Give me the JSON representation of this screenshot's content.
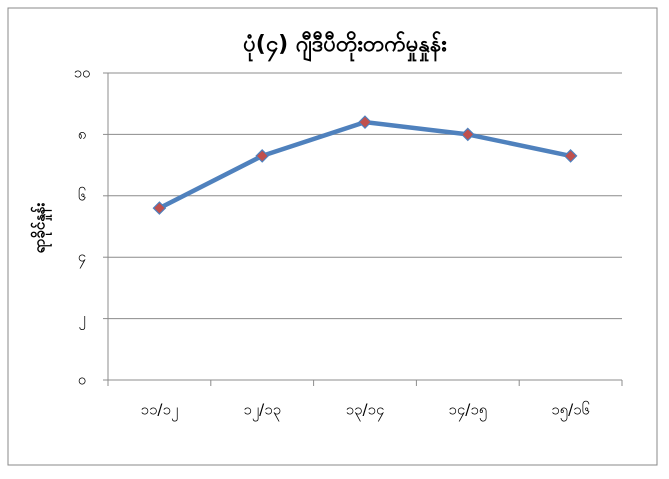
{
  "chart_data": {
    "type": "line",
    "title": "ပုံ(၄) ဂျီဒီပီတိုးတက်မှုနှုန်း",
    "y_label": "ရာခိုင်နှုန်း",
    "categories": [
      "၁၁/၁၂",
      "၁၂/၁၃",
      "၁၃/၁၄",
      "၁၄/၁၅",
      "၁၅/၁၆"
    ],
    "series": [
      {
        "name": "ရာခိုင်နှုန်း",
        "color": "#4f81bd",
        "marker_color": "#c0504d",
        "values": [
          5.6,
          7.3,
          8.4,
          8.0,
          7.3
        ]
      }
    ],
    "ylim": [
      0,
      10
    ],
    "yticks": [
      {
        "value": 0,
        "label": "၀"
      },
      {
        "value": 2,
        "label": "၂"
      },
      {
        "value": 4,
        "label": "၄"
      },
      {
        "value": 6,
        "label": "၆"
      },
      {
        "value": 8,
        "label": "၈"
      },
      {
        "value": 10,
        "label": "၁၀"
      }
    ],
    "grid": true
  }
}
